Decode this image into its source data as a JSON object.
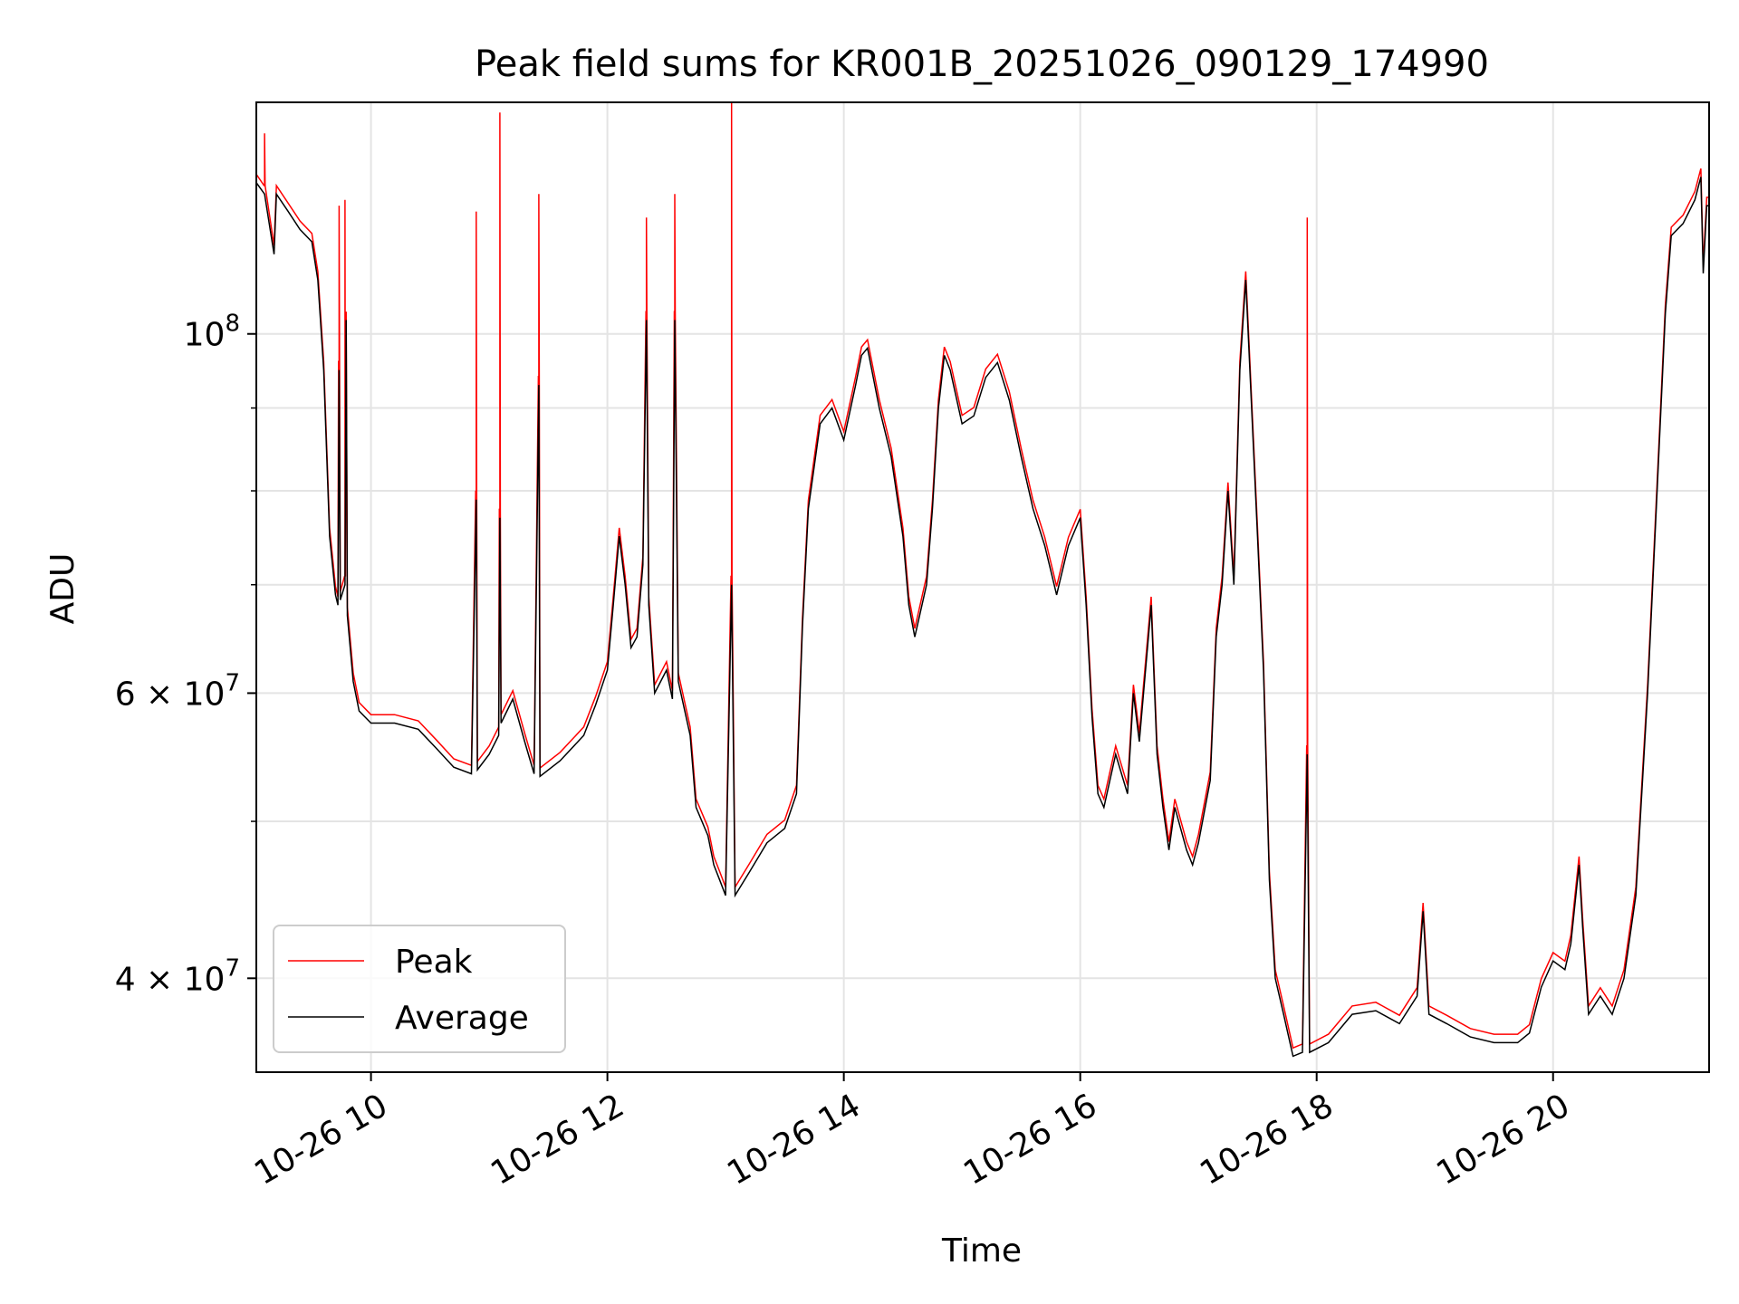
{
  "chart_data": {
    "type": "line",
    "title": "Peak field sums for KR001B_20251026_090129_174990",
    "xlabel": "Time",
    "ylabel": "ADU",
    "yscale": "log",
    "grid": true,
    "legend_position": "lower-left",
    "x_unit": "hours since 10-26 00:00",
    "xlim": [
      9.03,
      21.32
    ],
    "ylim": [
      35000000,
      139000000
    ],
    "x_ticks": [
      {
        "value": 10,
        "label": "10-26 10"
      },
      {
        "value": 12,
        "label": "10-26 12"
      },
      {
        "value": 14,
        "label": "10-26 14"
      },
      {
        "value": 16,
        "label": "10-26 16"
      },
      {
        "value": 18,
        "label": "10-26 18"
      },
      {
        "value": 20,
        "label": "10-26 20"
      }
    ],
    "y_major_ticks": [
      {
        "value": 40000000,
        "base": "4",
        "exp": "7"
      },
      {
        "value": 60000000,
        "base": "6",
        "exp": "7"
      },
      {
        "value": 100000000,
        "base": "",
        "exp": "8"
      }
    ],
    "y_minor_grid": [
      50000000,
      70000000,
      80000000,
      90000000
    ],
    "series": [
      {
        "name": "Peak",
        "color": "#ff0000",
        "spikes": [
          [
            9.1,
            133000000
          ],
          [
            9.73,
            120000000
          ],
          [
            9.78,
            121000000
          ],
          [
            10.89,
            119000000
          ],
          [
            11.09,
            137000000
          ],
          [
            11.42,
            122000000
          ],
          [
            12.33,
            118000000
          ],
          [
            12.57,
            122000000
          ],
          [
            13.05,
            140000000
          ],
          [
            17.92,
            118000000
          ]
        ]
      },
      {
        "name": "Average",
        "color": "#000000",
        "points": [
          [
            9.03,
            124000000
          ],
          [
            9.1,
            122000000
          ],
          [
            9.18,
            112000000
          ],
          [
            9.2,
            122000000
          ],
          [
            9.3,
            119000000
          ],
          [
            9.4,
            116000000
          ],
          [
            9.5,
            114000000
          ],
          [
            9.55,
            108000000
          ],
          [
            9.6,
            95000000
          ],
          [
            9.65,
            75000000
          ],
          [
            9.7,
            69000000
          ],
          [
            9.72,
            68000000
          ],
          [
            9.73,
            95000000
          ],
          [
            9.74,
            68500000
          ],
          [
            9.78,
            70000000
          ],
          [
            9.79,
            102000000
          ],
          [
            9.8,
            67000000
          ],
          [
            9.85,
            61000000
          ],
          [
            9.9,
            58500000
          ],
          [
            10.0,
            57500000
          ],
          [
            10.2,
            57500000
          ],
          [
            10.4,
            57000000
          ],
          [
            10.55,
            55500000
          ],
          [
            10.7,
            54000000
          ],
          [
            10.85,
            53500000
          ],
          [
            10.89,
            79000000
          ],
          [
            10.9,
            53800000
          ],
          [
            11.0,
            55000000
          ],
          [
            11.08,
            56500000
          ],
          [
            11.09,
            77000000
          ],
          [
            11.1,
            57500000
          ],
          [
            11.2,
            59500000
          ],
          [
            11.3,
            56000000
          ],
          [
            11.38,
            53500000
          ],
          [
            11.42,
            93000000
          ],
          [
            11.43,
            53300000
          ],
          [
            11.6,
            54500000
          ],
          [
            11.8,
            56500000
          ],
          [
            11.9,
            59000000
          ],
          [
            12.0,
            62000000
          ],
          [
            12.05,
            68000000
          ],
          [
            12.1,
            75000000
          ],
          [
            12.15,
            70000000
          ],
          [
            12.2,
            64000000
          ],
          [
            12.25,
            65000000
          ],
          [
            12.3,
            72000000
          ],
          [
            12.33,
            102000000
          ],
          [
            12.35,
            68000000
          ],
          [
            12.4,
            60000000
          ],
          [
            12.5,
            62000000
          ],
          [
            12.55,
            59500000
          ],
          [
            12.57,
            102000000
          ],
          [
            12.6,
            61000000
          ],
          [
            12.7,
            56500000
          ],
          [
            12.75,
            51000000
          ],
          [
            12.85,
            49000000
          ],
          [
            12.9,
            47000000
          ],
          [
            12.95,
            46000000
          ],
          [
            13.0,
            45000000
          ],
          [
            13.05,
            70000000
          ],
          [
            13.08,
            45000000
          ],
          [
            13.2,
            46500000
          ],
          [
            13.35,
            48500000
          ],
          [
            13.5,
            49500000
          ],
          [
            13.6,
            52000000
          ],
          [
            13.65,
            66000000
          ],
          [
            13.7,
            78000000
          ],
          [
            13.8,
            88000000
          ],
          [
            13.9,
            90000000
          ],
          [
            14.0,
            86000000
          ],
          [
            14.1,
            93000000
          ],
          [
            14.15,
            97000000
          ],
          [
            14.2,
            98000000
          ],
          [
            14.3,
            90000000
          ],
          [
            14.4,
            84000000
          ],
          [
            14.5,
            75000000
          ],
          [
            14.55,
            68000000
          ],
          [
            14.6,
            65000000
          ],
          [
            14.7,
            70000000
          ],
          [
            14.75,
            78000000
          ],
          [
            14.8,
            90000000
          ],
          [
            14.85,
            97000000
          ],
          [
            14.9,
            95000000
          ],
          [
            15.0,
            88000000
          ],
          [
            15.1,
            89000000
          ],
          [
            15.2,
            94000000
          ],
          [
            15.3,
            96000000
          ],
          [
            15.4,
            91000000
          ],
          [
            15.5,
            84000000
          ],
          [
            15.6,
            78000000
          ],
          [
            15.7,
            74000000
          ],
          [
            15.8,
            69000000
          ],
          [
            15.9,
            74000000
          ],
          [
            16.0,
            77000000
          ],
          [
            16.05,
            68000000
          ],
          [
            16.1,
            58000000
          ],
          [
            16.15,
            52000000
          ],
          [
            16.2,
            51000000
          ],
          [
            16.3,
            55000000
          ],
          [
            16.4,
            52000000
          ],
          [
            16.45,
            60000000
          ],
          [
            16.5,
            56000000
          ],
          [
            16.6,
            68000000
          ],
          [
            16.65,
            55000000
          ],
          [
            16.7,
            51000000
          ],
          [
            16.75,
            48000000
          ],
          [
            16.8,
            51000000
          ],
          [
            16.9,
            48000000
          ],
          [
            16.95,
            47000000
          ],
          [
            17.0,
            48500000
          ],
          [
            17.1,
            53000000
          ],
          [
            17.15,
            65000000
          ],
          [
            17.2,
            70000000
          ],
          [
            17.25,
            80000000
          ],
          [
            17.3,
            70000000
          ],
          [
            17.35,
            95000000
          ],
          [
            17.4,
            108000000
          ],
          [
            17.45,
            90000000
          ],
          [
            17.5,
            75000000
          ],
          [
            17.55,
            62000000
          ],
          [
            17.6,
            46000000
          ],
          [
            17.65,
            40000000
          ],
          [
            17.72,
            38000000
          ],
          [
            17.8,
            35800000
          ],
          [
            17.88,
            36000000
          ],
          [
            17.92,
            55000000
          ],
          [
            17.94,
            36000000
          ],
          [
            18.1,
            36500000
          ],
          [
            18.3,
            38000000
          ],
          [
            18.5,
            38200000
          ],
          [
            18.7,
            37500000
          ],
          [
            18.85,
            39000000
          ],
          [
            18.9,
            44000000
          ],
          [
            18.95,
            38000000
          ],
          [
            19.1,
            37500000
          ],
          [
            19.3,
            36800000
          ],
          [
            19.5,
            36500000
          ],
          [
            19.7,
            36500000
          ],
          [
            19.8,
            37000000
          ],
          [
            19.9,
            39500000
          ],
          [
            20.0,
            41000000
          ],
          [
            20.1,
            40500000
          ],
          [
            20.15,
            42000000
          ],
          [
            20.22,
            47000000
          ],
          [
            20.25,
            43000000
          ],
          [
            20.3,
            38000000
          ],
          [
            20.4,
            39000000
          ],
          [
            20.5,
            38000000
          ],
          [
            20.6,
            40000000
          ],
          [
            20.7,
            45000000
          ],
          [
            20.8,
            60000000
          ],
          [
            20.88,
            80000000
          ],
          [
            20.95,
            103000000
          ],
          [
            21.0,
            115000000
          ],
          [
            21.1,
            117000000
          ],
          [
            21.2,
            121000000
          ],
          [
            21.25,
            125000000
          ],
          [
            21.27,
            109000000
          ],
          [
            21.3,
            120000000
          ],
          [
            21.32,
            120000000
          ]
        ]
      }
    ]
  }
}
